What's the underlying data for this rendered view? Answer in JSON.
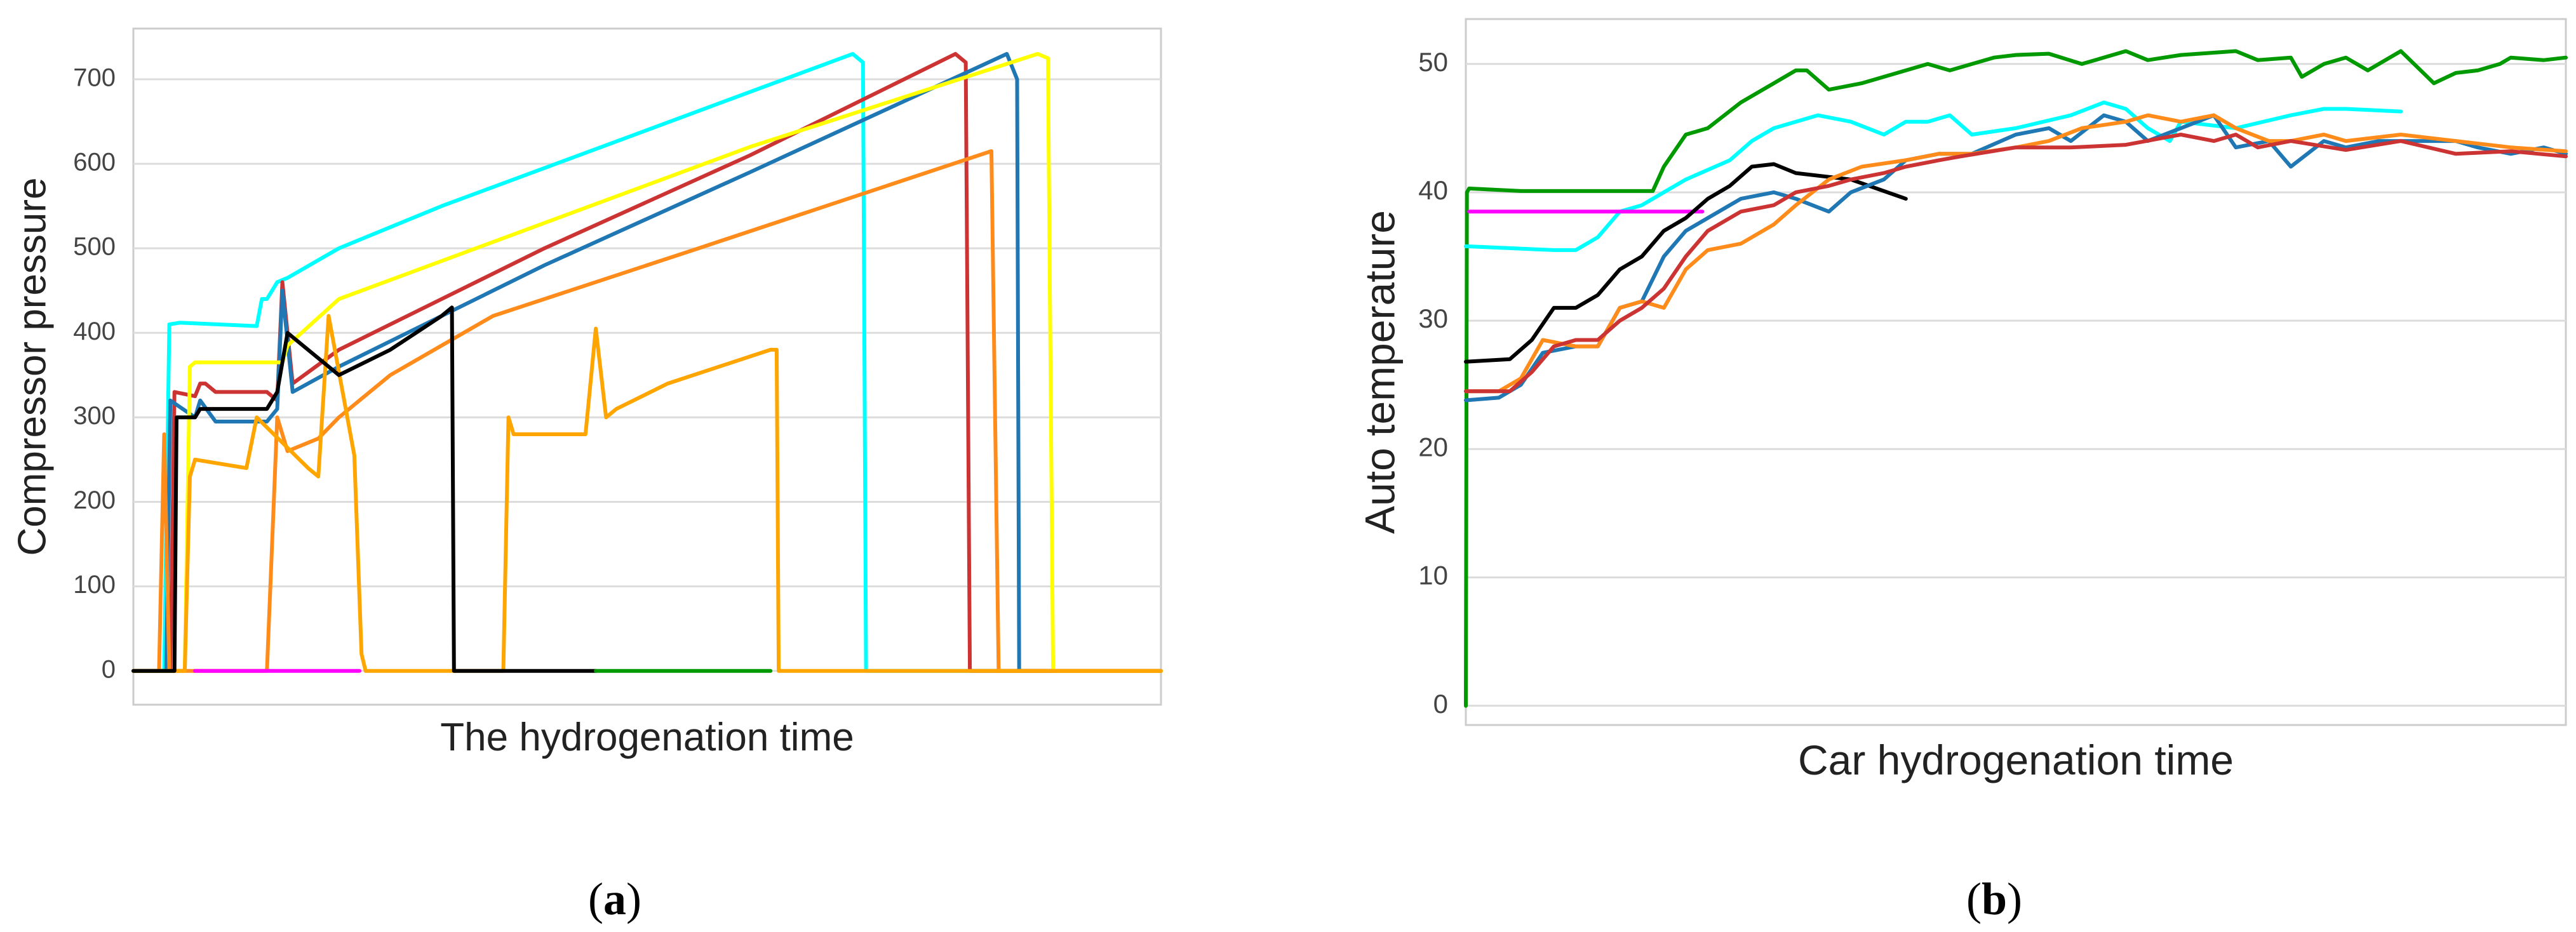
{
  "chart_data": [
    {
      "id": "a",
      "panel_label": "(a)",
      "panel_letter": "a",
      "type": "line",
      "xlabel": "The hydrogenation time",
      "ylabel": "Compressor pressure",
      "x_ticks_shown": false,
      "xlim": [
        0,
        100
      ],
      "ylim": [
        -40,
        760
      ],
      "yticks": [
        0,
        100,
        200,
        300,
        400,
        500,
        600,
        700
      ],
      "grid": "horizontal",
      "series": [
        {
          "color": "#00ffff",
          "x": [
            0,
            3,
            3.5,
            4.5,
            12,
            12.5,
            13,
            14,
            15,
            20,
            30,
            50,
            70,
            71,
            71.3,
            72,
            100
          ],
          "y": [
            0,
            0,
            410,
            412,
            408,
            440,
            440,
            460,
            465,
            500,
            550,
            640,
            730,
            720,
            0,
            0,
            0
          ]
        },
        {
          "color": "#cc3333",
          "x": [
            0,
            3.6,
            4,
            6,
            6.5,
            7,
            8,
            13,
            14,
            14.5,
            15.5,
            20,
            40,
            60,
            80,
            81,
            81.4,
            82,
            100
          ],
          "y": [
            0,
            0,
            330,
            325,
            340,
            340,
            330,
            330,
            320,
            460,
            340,
            380,
            500,
            610,
            730,
            720,
            0,
            0,
            0
          ]
        },
        {
          "color": "#1f77b4",
          "x": [
            0,
            3.2,
            3.6,
            6,
            6.5,
            8,
            13,
            14,
            14.5,
            15.5,
            20,
            40,
            60,
            85,
            86,
            86.2,
            86.5,
            100
          ],
          "y": [
            0,
            0,
            320,
            300,
            320,
            295,
            295,
            310,
            450,
            330,
            360,
            480,
            590,
            730,
            700,
            0,
            0,
            0
          ]
        },
        {
          "color": "#ffff00",
          "x": [
            0,
            5,
            5.5,
            6,
            13,
            14.5,
            15,
            20,
            40,
            60,
            88,
            89,
            89.5,
            100
          ],
          "y": [
            0,
            0,
            360,
            365,
            365,
            365,
            385,
            440,
            530,
            620,
            730,
            725,
            0,
            0
          ]
        },
        {
          "color": "#ff8c1a",
          "x": [
            0,
            2.5,
            3,
            3.5,
            4,
            13,
            14,
            15,
            18,
            20,
            25,
            35,
            55,
            83.5,
            84.2,
            84.5,
            100
          ],
          "y": [
            0,
            0,
            280,
            0,
            0,
            0,
            300,
            260,
            275,
            300,
            350,
            420,
            500,
            615,
            0,
            0,
            0
          ]
        },
        {
          "color": "#ffa500",
          "x": [
            0,
            5,
            5.5,
            6,
            11,
            12,
            17,
            18,
            19,
            21.5,
            22.2,
            22.6,
            36,
            36.5,
            37,
            44,
            45,
            46,
            47,
            52,
            62,
            62.6,
            62.8,
            100
          ],
          "y": [
            0,
            0,
            230,
            250,
            240,
            300,
            240,
            230,
            420,
            255,
            20,
            0,
            0,
            300,
            280,
            280,
            405,
            300,
            310,
            340,
            380,
            380,
            0,
            0
          ]
        },
        {
          "color": "#000000",
          "x": [
            0,
            4,
            4.2,
            6,
            6.5,
            10,
            13,
            14,
            15,
            20,
            25,
            30,
            31,
            31.2,
            31.5,
            45
          ],
          "y": [
            0,
            0,
            300,
            300,
            310,
            310,
            310,
            330,
            400,
            350,
            380,
            420,
            430,
            0,
            0,
            0
          ]
        },
        {
          "color": "#ff00ff",
          "x": [
            6,
            22
          ],
          "y": [
            0,
            0
          ]
        },
        {
          "color": "#009900",
          "x": [
            45,
            62
          ],
          "y": [
            0,
            0
          ]
        }
      ]
    },
    {
      "id": "b",
      "panel_label": "(b)",
      "panel_letter": "b",
      "type": "line",
      "xlabel": "Car hydrogenation time",
      "ylabel": "Auto temperature",
      "x_ticks_shown": false,
      "xlim": [
        0,
        100
      ],
      "ylim": [
        -1.5,
        53.5
      ],
      "yticks": [
        0,
        10,
        20,
        30,
        40,
        50
      ],
      "grid": "horizontal",
      "series": [
        {
          "color": "#009900",
          "x": [
            0,
            0.1,
            0.3,
            5,
            17,
            18,
            20,
            22,
            25,
            28,
            30,
            31,
            33,
            36,
            40,
            42,
            44,
            48,
            50,
            53,
            56,
            60,
            62,
            65,
            70,
            72,
            75,
            76,
            78,
            80,
            82,
            85,
            88,
            90,
            92,
            94,
            95,
            98,
            100
          ],
          "y": [
            0,
            40,
            40.3,
            40.1,
            40.1,
            42,
            44.5,
            45,
            47,
            48.5,
            49.5,
            49.5,
            48,
            48.5,
            49.5,
            50,
            49.5,
            50.5,
            50.7,
            50.8,
            50,
            51,
            50.3,
            50.7,
            51,
            50.3,
            50.5,
            49,
            50,
            50.5,
            49.5,
            51,
            48.5,
            49.3,
            49.5,
            50,
            50.5,
            50.3,
            50.5
          ]
        },
        {
          "color": "#00ffff",
          "x": [
            0,
            8,
            10,
            12,
            14,
            16,
            18,
            20,
            24,
            26,
            28,
            30,
            32,
            35,
            38,
            40,
            42,
            44,
            46,
            50,
            55,
            58,
            60,
            62,
            64,
            65,
            70,
            75,
            78,
            80,
            85
          ],
          "y": [
            35.8,
            35.5,
            35.5,
            36.5,
            38.5,
            39,
            40,
            41,
            42.5,
            44,
            45,
            45.5,
            46,
            45.5,
            44.5,
            45.5,
            45.5,
            46,
            44.5,
            45,
            46,
            47,
            46.5,
            45,
            44,
            45.5,
            45,
            46,
            46.5,
            46.5,
            46.3
          ]
        },
        {
          "color": "#ff00ff",
          "x": [
            0.3,
            21.5
          ],
          "y": [
            38.5,
            38.5
          ]
        },
        {
          "color": "#000000",
          "x": [
            0,
            4,
            6,
            8,
            10,
            12,
            14,
            16,
            18,
            20,
            22,
            24,
            26,
            28,
            30,
            35,
            40
          ],
          "y": [
            26.8,
            27,
            28.5,
            31,
            31,
            32,
            34,
            35,
            37,
            38,
            39.5,
            40.5,
            42,
            42.2,
            41.5,
            41,
            39.5
          ]
        },
        {
          "color": "#1f77b4",
          "x": [
            0,
            3,
            5,
            7,
            10,
            12,
            14,
            16,
            18,
            20,
            22,
            25,
            28,
            30,
            33,
            35,
            38,
            40,
            43,
            46,
            50,
            53,
            55,
            58,
            60,
            62,
            65,
            68,
            70,
            73,
            75,
            78,
            80,
            83,
            86,
            90,
            92,
            95,
            98,
            100
          ],
          "y": [
            23.8,
            24,
            25,
            27.5,
            28,
            28,
            31,
            31.5,
            35,
            37,
            38,
            39.5,
            40,
            39.5,
            38.5,
            40,
            41,
            42.5,
            43,
            43,
            44.5,
            45,
            44,
            46,
            45.5,
            44,
            45,
            46,
            43.5,
            44,
            42,
            44,
            43.5,
            44,
            44,
            44,
            43.5,
            43,
            43.5,
            43
          ]
        },
        {
          "color": "#ff8c1a",
          "x": [
            0,
            3,
            5,
            7,
            10,
            12,
            14,
            16,
            18,
            20,
            22,
            25,
            28,
            30,
            33,
            36,
            40,
            43,
            46,
            50,
            53,
            56,
            60,
            62,
            65,
            68,
            70,
            73,
            75,
            78,
            80,
            85,
            90,
            95,
            100
          ],
          "y": [
            24.5,
            24.5,
            25.5,
            28.5,
            28,
            28,
            31,
            31.5,
            31,
            34,
            35.5,
            36,
            37.5,
            39,
            41,
            42,
            42.5,
            43,
            43,
            43.5,
            44,
            45,
            45.5,
            46,
            45.5,
            46,
            45,
            44,
            44,
            44.5,
            44,
            44.5,
            44,
            43.5,
            43.2
          ]
        },
        {
          "color": "#cc3333",
          "x": [
            0,
            4,
            6,
            8,
            10,
            12,
            14,
            16,
            18,
            20,
            22,
            25,
            28,
            30,
            33,
            35,
            38,
            40,
            43,
            45,
            50,
            55,
            60,
            65,
            68,
            70,
            72,
            75,
            80,
            85,
            90,
            95,
            100
          ],
          "y": [
            24.5,
            24.5,
            26,
            28,
            28.5,
            28.5,
            30,
            31,
            32.5,
            35,
            37,
            38.5,
            39,
            40,
            40.5,
            41,
            41.5,
            42,
            42.5,
            42.8,
            43.5,
            43.5,
            43.7,
            44.5,
            44,
            44.5,
            43.5,
            44,
            43.3,
            44,
            43,
            43.2,
            42.8
          ]
        }
      ]
    }
  ]
}
